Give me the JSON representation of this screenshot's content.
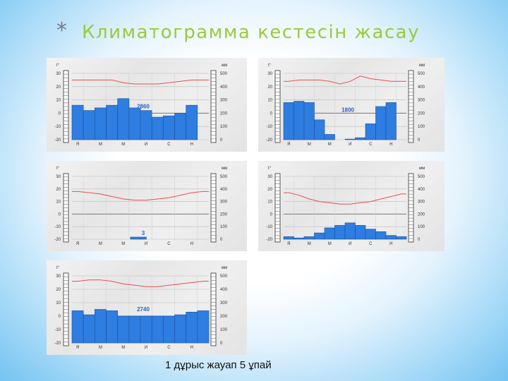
{
  "title": "Климатограмма кестесін жасау",
  "bullet": "*",
  "caption": "1 дұрыс жауап 5 ұпай",
  "colors": {
    "bar": "#2e7de0",
    "bar_stroke": "#1f4fa0",
    "temp_line": "#e8504f",
    "title": "#9acb3c",
    "annotation": "#3060c0"
  },
  "chart_data": [
    {
      "type": "bar",
      "annotation": "2860",
      "t_unit": "t°",
      "p_unit": "мм",
      "t_ticks": [
        "30",
        "20",
        "10",
        "0",
        "-10",
        "-20"
      ],
      "p_ticks": [
        "500",
        "400",
        "300",
        "200",
        "100",
        "0"
      ],
      "month_labels": [
        "Я",
        "",
        "М",
        "",
        "М",
        "",
        "И",
        "",
        "С",
        "",
        "Н",
        ""
      ],
      "t_range": [
        -20,
        30
      ],
      "precip": [
        260,
        220,
        240,
        260,
        310,
        240,
        220,
        170,
        180,
        200,
        260,
        0
      ],
      "temp": [
        25,
        25,
        25,
        25,
        23,
        22,
        22,
        22,
        23,
        24,
        25,
        25
      ],
      "precip_only_11": true
    },
    {
      "type": "bar",
      "annotation": "1800",
      "t_unit": "t°",
      "p_unit": "мм",
      "t_ticks": [
        "30",
        "20",
        "10",
        "0",
        "-10",
        "-20"
      ],
      "p_ticks": [
        "500",
        "400",
        "300",
        "200",
        "100",
        "0"
      ],
      "month_labels": [
        "Я",
        "",
        "М",
        "",
        "М",
        "",
        "И",
        "",
        "С",
        "",
        "Н",
        ""
      ],
      "t_range": [
        -20,
        30
      ],
      "precip": [
        280,
        290,
        280,
        150,
        40,
        0,
        5,
        15,
        120,
        250,
        280,
        0
      ],
      "temp": [
        24,
        25,
        25,
        25,
        24,
        22,
        24,
        28,
        26,
        25,
        24,
        24
      ],
      "precip_only_11": true
    },
    {
      "type": "bar",
      "annotation": "3",
      "t_unit": "t°",
      "p_unit": "мм",
      "t_ticks": [
        "30",
        "20",
        "10",
        "0",
        "-10",
        "-20"
      ],
      "p_ticks": [
        "500",
        "400",
        "300",
        "200",
        "100",
        "0"
      ],
      "month_labels": [
        "Я",
        "",
        "М",
        "",
        "М",
        "",
        "И",
        "",
        "С",
        "",
        "Н",
        ""
      ],
      "t_range": [
        -20,
        30
      ],
      "precip": [
        0,
        0,
        0,
        0,
        0,
        0,
        0,
        0,
        0,
        0,
        0,
        0
      ],
      "temp": [
        18,
        17,
        16,
        14,
        12,
        11,
        11,
        12,
        13,
        15,
        17,
        18
      ],
      "precip_only_11": true
    },
    {
      "type": "bar",
      "annotation": "",
      "t_unit": "t°",
      "p_unit": "мм",
      "t_ticks": [
        "30",
        "20",
        "10",
        "0",
        "-10",
        "-20"
      ],
      "p_ticks": [
        "500",
        "400",
        "300",
        "200",
        "100",
        "0"
      ],
      "month_labels": [
        "Я",
        "",
        "М",
        "",
        "М",
        "",
        "И",
        "",
        "С",
        "",
        "Н",
        ""
      ],
      "t_range": [
        -20,
        30
      ],
      "precip": [
        20,
        10,
        20,
        50,
        90,
        110,
        130,
        110,
        80,
        60,
        30,
        20
      ],
      "temp": [
        17,
        15,
        12,
        10,
        9,
        8,
        8,
        9,
        10,
        12,
        14,
        16
      ],
      "precip_only_11": false
    },
    {
      "type": "bar",
      "annotation": "2740",
      "t_unit": "t°",
      "p_unit": "мм",
      "t_ticks": [
        "30",
        "20",
        "10",
        "0",
        "-10",
        "-20"
      ],
      "p_ticks": [
        "500",
        "400",
        "300",
        "200",
        "100",
        "0"
      ],
      "month_labels": [
        "Я",
        "",
        "М",
        "",
        "М",
        "",
        "И",
        "",
        "С",
        "",
        "Н",
        ""
      ],
      "t_range": [
        -20,
        30
      ],
      "precip": [
        240,
        210,
        250,
        240,
        200,
        200,
        200,
        200,
        200,
        210,
        230,
        240
      ],
      "temp": [
        26,
        27,
        27,
        26,
        24,
        23,
        22,
        22,
        23,
        24,
        25,
        26
      ],
      "precip_only_11": false
    }
  ]
}
